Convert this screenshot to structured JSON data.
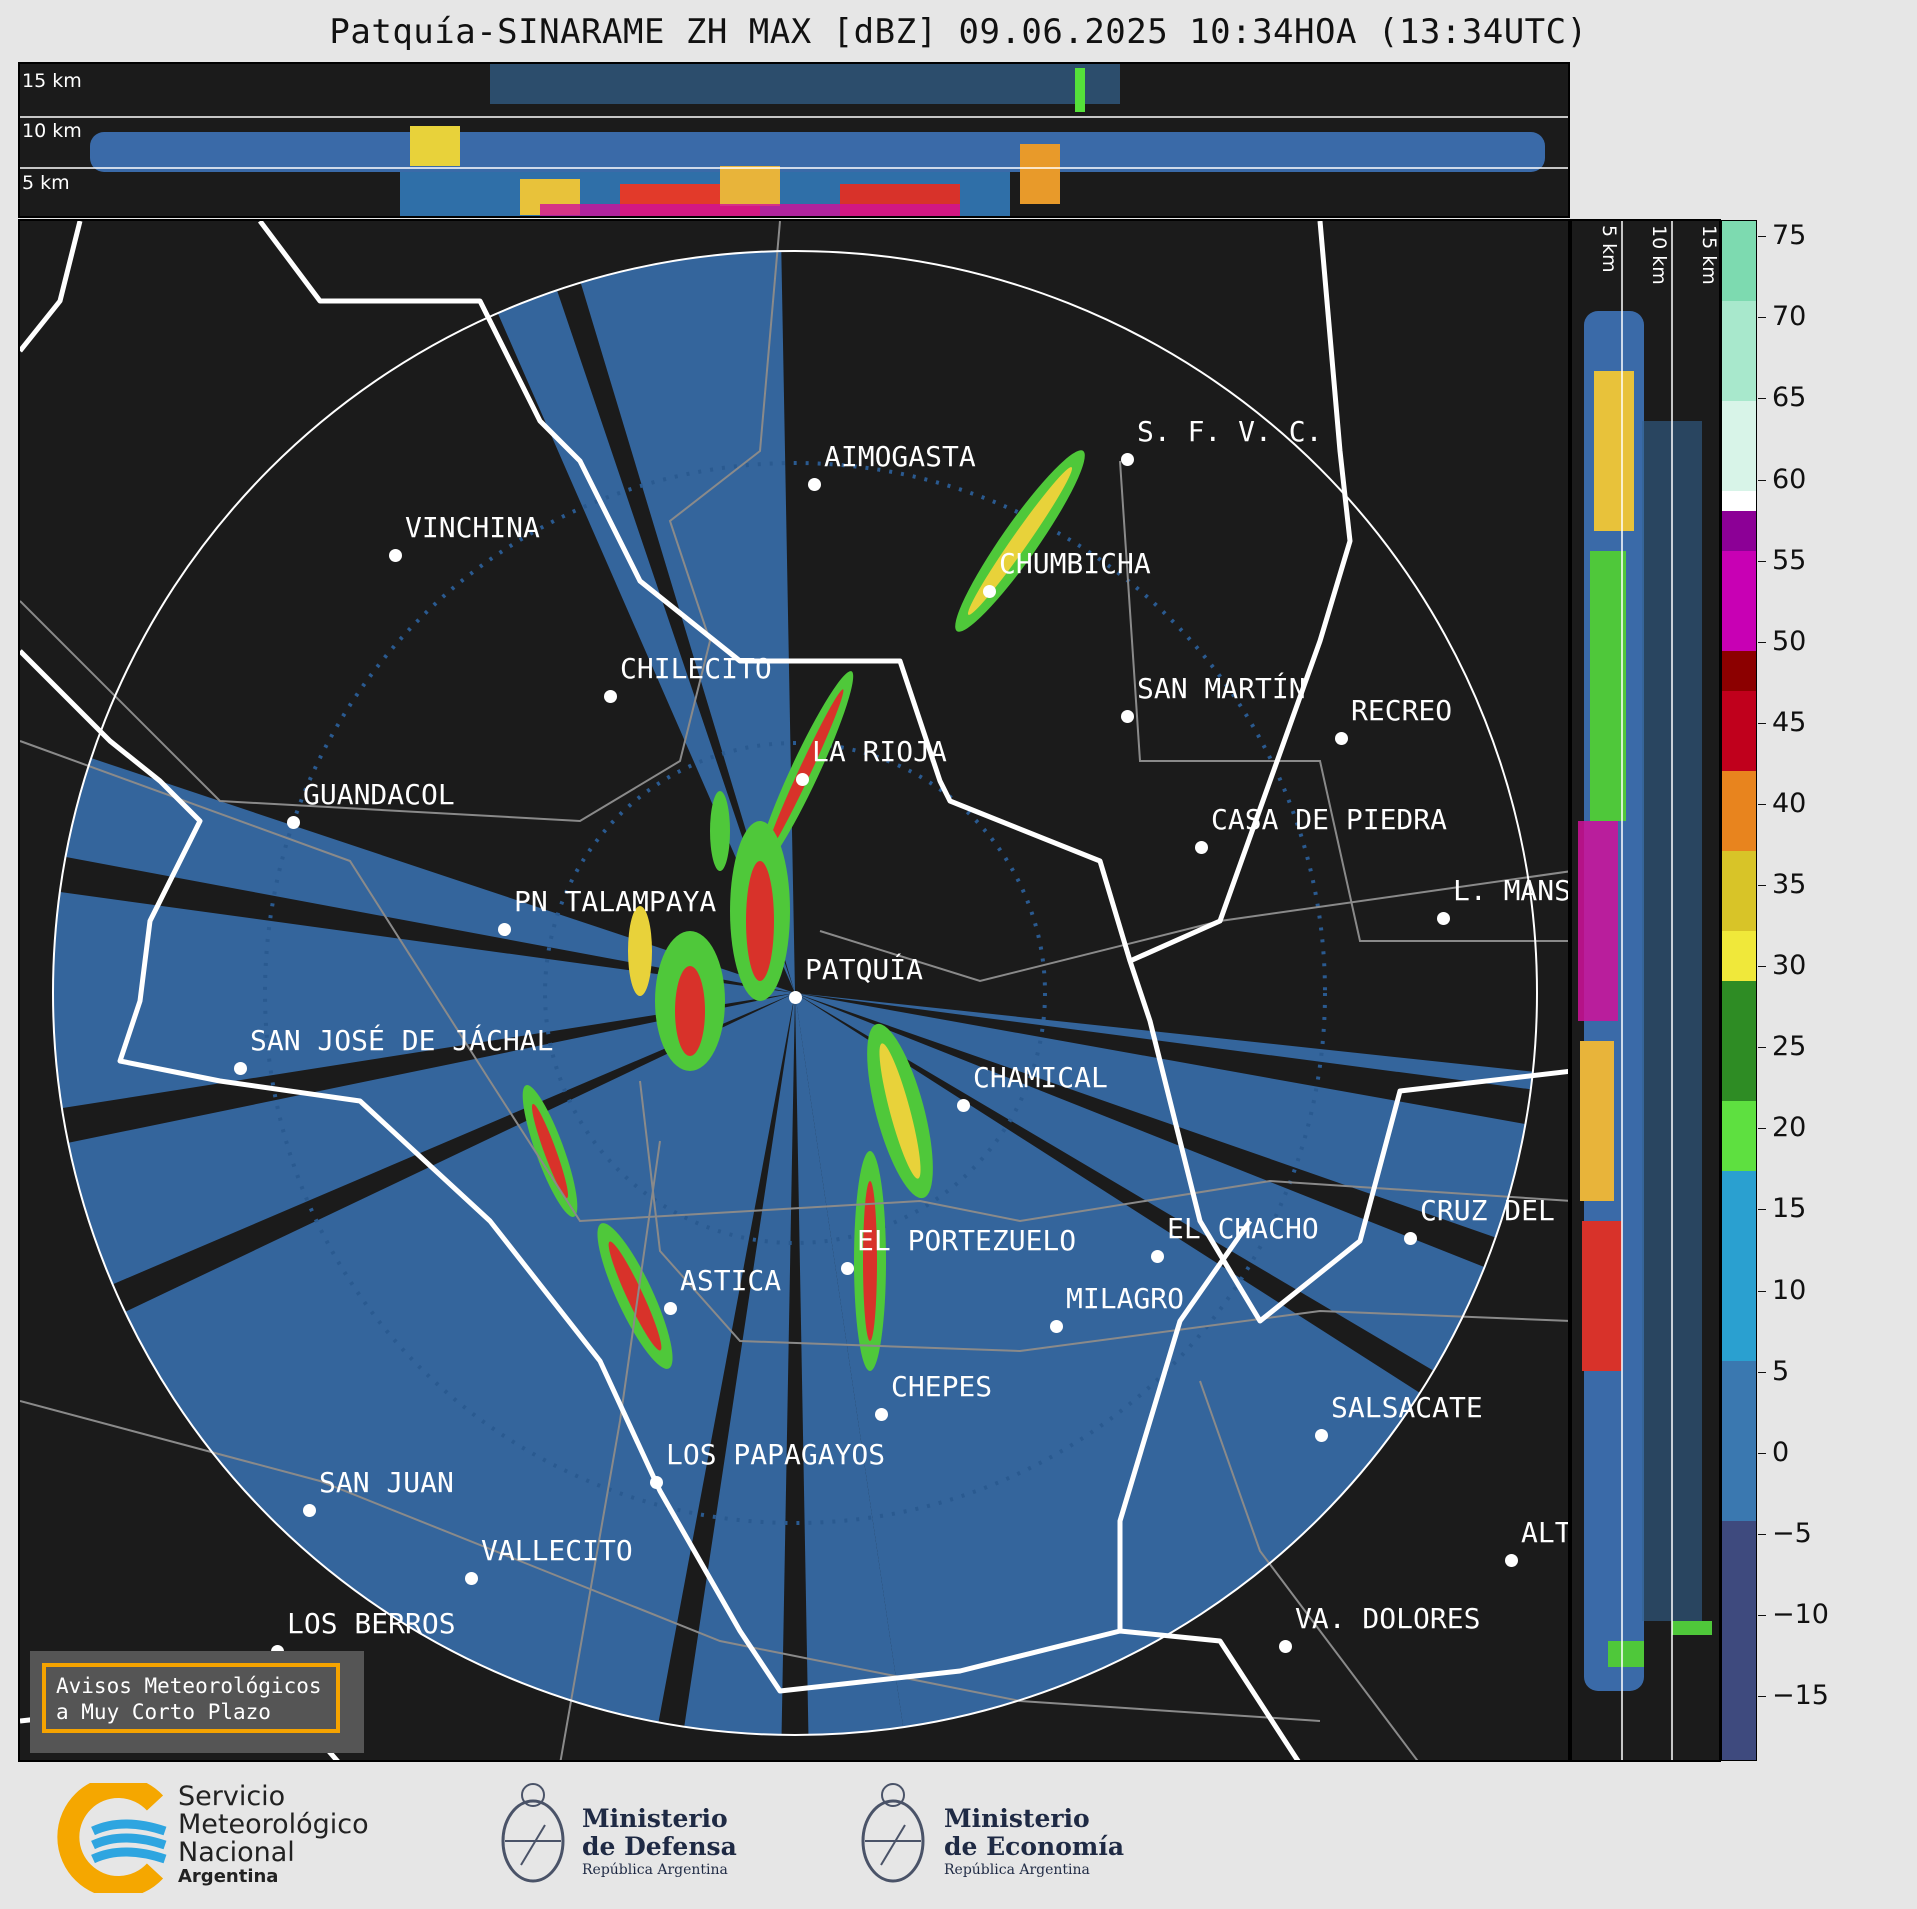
{
  "header": {
    "title": "Patquía-SINARAME ZH MAX [dBZ] 09.06.2025 10:34HOA (13:34UTC)"
  },
  "top_panel": {
    "alt_labels": [
      "15 km",
      "10 km",
      "5 km"
    ]
  },
  "side_panel": {
    "alt_labels": [
      "5 km",
      "10 km",
      "15 km"
    ]
  },
  "map": {
    "cities": [
      {
        "name": "AIMOGASTA"
      },
      {
        "name": "S. F. V. C."
      },
      {
        "name": "VINCHINA"
      },
      {
        "name": "CHUMBICHA"
      },
      {
        "name": "CHILECITO"
      },
      {
        "name": "SAN MARTÍN"
      },
      {
        "name": "RECREO"
      },
      {
        "name": "LA RIOJA"
      },
      {
        "name": "GUANDACOL"
      },
      {
        "name": "CASA DE PIEDRA"
      },
      {
        "name": "PN TALAMPAYA"
      },
      {
        "name": "L. MANS"
      },
      {
        "name": "PATQUÍA"
      },
      {
        "name": "SAN JOSÉ DE JÁCHAL"
      },
      {
        "name": "CHAMICAL"
      },
      {
        "name": "CRUZ DEL"
      },
      {
        "name": "EL CHACHO"
      },
      {
        "name": "EL PORTEZUELO"
      },
      {
        "name": "ASTICA"
      },
      {
        "name": "MILAGRO"
      },
      {
        "name": "CHEPES"
      },
      {
        "name": "SALSACATE"
      },
      {
        "name": "LOS PAPAGAYOS"
      },
      {
        "name": "SAN JUAN"
      },
      {
        "name": "VALLECITO"
      },
      {
        "name": "ALT"
      },
      {
        "name": "LOS BERROS"
      },
      {
        "name": "VA. DOLORES"
      }
    ],
    "warning_line1": "Avisos Meteorológicos",
    "warning_line2": "a Muy Corto Plazo"
  },
  "colorbar": {
    "unit": "dBZ",
    "range": [
      -19,
      76
    ],
    "ticks": [
      "75",
      "70",
      "65",
      "60",
      "55",
      "50",
      "45",
      "40",
      "35",
      "30",
      "25",
      "20",
      "15",
      "10",
      "5",
      "0",
      "−5",
      "−10",
      "−15"
    ]
  },
  "footer": {
    "smn_line1": "Servicio",
    "smn_line2": "Meteorológico",
    "smn_line3": "Nacional",
    "smn_line4": "Argentina",
    "defensa_line1": "Ministerio",
    "defensa_line2": "de Defensa",
    "defensa_line3": "República Argentina",
    "economia_line1": "Ministerio",
    "economia_line2": "de Economía",
    "economia_line3": "República Argentina"
  }
}
